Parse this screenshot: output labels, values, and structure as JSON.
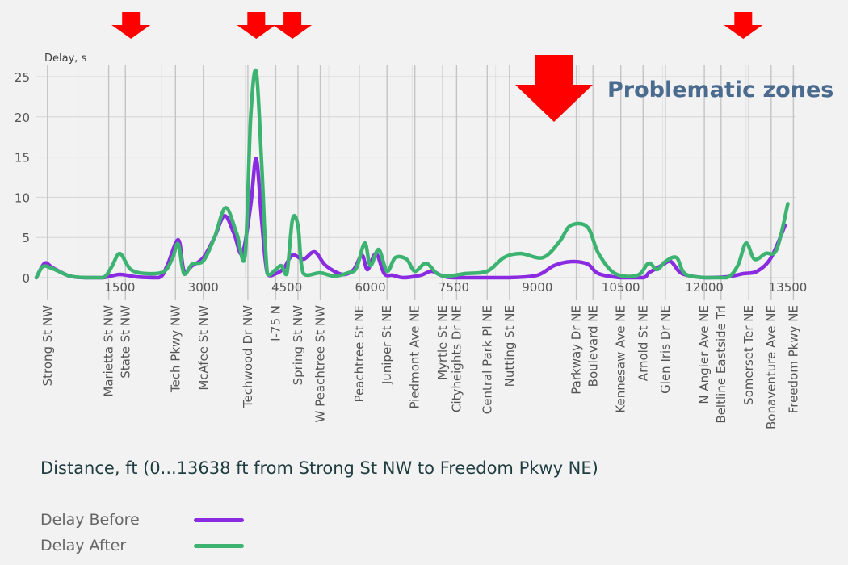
{
  "chart_data": {
    "type": "line",
    "ylabel": "Delay, s",
    "xlabel": "Distance, ft (0...13638 ft from Strong St NW to Freedom Pkwy NE)",
    "annotation": "Problematic zones",
    "xlim": [
      0,
      13638
    ],
    "ylim": [
      0,
      25
    ],
    "x_ticks": [
      1500,
      3000,
      4500,
      6000,
      7500,
      9000,
      10500,
      12000,
      13500
    ],
    "y_ticks": [
      0,
      5,
      10,
      15,
      20,
      25
    ],
    "grid": true,
    "streets": [
      {
        "name": "Strong St NW",
        "x": 200
      },
      {
        "name": "Marietta St NW",
        "x": 1300
      },
      {
        "name": "State St NW",
        "x": 1600
      },
      {
        "name": "Tech Pkwy NW",
        "x": 2500
      },
      {
        "name": "McAfee St NW",
        "x": 3000
      },
      {
        "name": "Techwood Dr NW",
        "x": 3800
      },
      {
        "name": "I-75 N",
        "x": 4300
      },
      {
        "name": "Spring St NW",
        "x": 4700
      },
      {
        "name": "W Peachtree St NW",
        "x": 5100
      },
      {
        "name": "Peachtree St NE",
        "x": 5800
      },
      {
        "name": "Juniper St NE",
        "x": 6300
      },
      {
        "name": "Piedmont Ave NE",
        "x": 6800
      },
      {
        "name": "Myrtle St NE",
        "x": 7300
      },
      {
        "name": "Cityheights Dr NE",
        "x": 7550
      },
      {
        "name": "Central Park Pl NE",
        "x": 8100
      },
      {
        "name": "Nutting St NE",
        "x": 8500
      },
      {
        "name": "Parkway Dr NE",
        "x": 9700
      },
      {
        "name": "Boulevard NE",
        "x": 10000
      },
      {
        "name": "Kennesaw Ave NE",
        "x": 10500
      },
      {
        "name": "Arnold St NE",
        "x": 10900
      },
      {
        "name": "Glen Iris Dr NE",
        "x": 11300
      },
      {
        "name": "N Angier Ave NE",
        "x": 12000
      },
      {
        "name": "Beltline Eastside Trl",
        "x": 12300
      },
      {
        "name": "Somerset Ter NE",
        "x": 12800
      },
      {
        "name": "Bonaventure Ave NE",
        "x": 13200
      },
      {
        "name": "Freedom Pkwy NE",
        "x": 13600
      }
    ],
    "problem_zones_x": [
      1700,
      3950,
      4600,
      12700,
      9300
    ],
    "series": [
      {
        "name": "Delay Before",
        "color": "#8a2be2",
        "points": [
          [
            0,
            0
          ],
          [
            150,
            1.8
          ],
          [
            300,
            1.2
          ],
          [
            600,
            0.2
          ],
          [
            900,
            0
          ],
          [
            1200,
            0
          ],
          [
            1500,
            0.4
          ],
          [
            1800,
            0.1
          ],
          [
            2200,
            0
          ],
          [
            2350,
            1.5
          ],
          [
            2550,
            4.7
          ],
          [
            2650,
            0.9
          ],
          [
            2800,
            1.5
          ],
          [
            3000,
            2.5
          ],
          [
            3200,
            5
          ],
          [
            3380,
            7.7
          ],
          [
            3550,
            5.5
          ],
          [
            3700,
            3
          ],
          [
            3850,
            9
          ],
          [
            3950,
            14.8
          ],
          [
            4050,
            7
          ],
          [
            4150,
            0.5
          ],
          [
            4300,
            0.5
          ],
          [
            4450,
            1.2
          ],
          [
            4600,
            2.8
          ],
          [
            4800,
            2.3
          ],
          [
            5000,
            3.2
          ],
          [
            5200,
            1.5
          ],
          [
            5500,
            0.4
          ],
          [
            5700,
            1
          ],
          [
            5850,
            2.8
          ],
          [
            5950,
            1
          ],
          [
            6100,
            3
          ],
          [
            6250,
            0.5
          ],
          [
            6400,
            0.3
          ],
          [
            6600,
            0
          ],
          [
            6900,
            0.3
          ],
          [
            7100,
            0.8
          ],
          [
            7300,
            0.2
          ],
          [
            7500,
            0
          ],
          [
            8000,
            0
          ],
          [
            8500,
            0
          ],
          [
            9000,
            0.3
          ],
          [
            9300,
            1.5
          ],
          [
            9600,
            2
          ],
          [
            9900,
            1.7
          ],
          [
            10100,
            0.5
          ],
          [
            10500,
            0
          ],
          [
            10900,
            0
          ],
          [
            11000,
            0.6
          ],
          [
            11100,
            1
          ],
          [
            11250,
            1.6
          ],
          [
            11400,
            2
          ],
          [
            11600,
            0.5
          ],
          [
            12000,
            0
          ],
          [
            12400,
            0.1
          ],
          [
            12700,
            0.5
          ],
          [
            12950,
            0.8
          ],
          [
            13200,
            2.5
          ],
          [
            13450,
            6.5
          ]
        ]
      },
      {
        "name": "Delay After",
        "color": "#3cb371",
        "points": [
          [
            0,
            0
          ],
          [
            120,
            1.4
          ],
          [
            300,
            1.1
          ],
          [
            600,
            0.2
          ],
          [
            900,
            0
          ],
          [
            1200,
            0
          ],
          [
            1350,
            1.3
          ],
          [
            1500,
            3
          ],
          [
            1700,
            1
          ],
          [
            2000,
            0.5
          ],
          [
            2300,
            0.8
          ],
          [
            2450,
            2.5
          ],
          [
            2550,
            4.2
          ],
          [
            2650,
            0.5
          ],
          [
            2800,
            1.7
          ],
          [
            3000,
            2.1
          ],
          [
            3200,
            5
          ],
          [
            3400,
            8.7
          ],
          [
            3600,
            5.5
          ],
          [
            3750,
            2.8
          ],
          [
            3850,
            20
          ],
          [
            3950,
            25.6
          ],
          [
            4050,
            14
          ],
          [
            4150,
            0.5
          ],
          [
            4300,
            1
          ],
          [
            4400,
            1.5
          ],
          [
            4500,
            0.5
          ],
          [
            4600,
            7.2
          ],
          [
            4700,
            6.5
          ],
          [
            4800,
            0.5
          ],
          [
            5100,
            0.6
          ],
          [
            5350,
            0.2
          ],
          [
            5600,
            0.6
          ],
          [
            5750,
            1.2
          ],
          [
            5900,
            4.3
          ],
          [
            6000,
            1.5
          ],
          [
            6150,
            3.5
          ],
          [
            6300,
            0.8
          ],
          [
            6450,
            2.5
          ],
          [
            6650,
            2.3
          ],
          [
            6800,
            0.8
          ],
          [
            7000,
            1.8
          ],
          [
            7200,
            0.5
          ],
          [
            7400,
            0.2
          ],
          [
            7700,
            0.5
          ],
          [
            8100,
            0.8
          ],
          [
            8400,
            2.5
          ],
          [
            8700,
            3
          ],
          [
            9100,
            2.5
          ],
          [
            9400,
            4.5
          ],
          [
            9600,
            6.5
          ],
          [
            9900,
            6.3
          ],
          [
            10100,
            3
          ],
          [
            10400,
            0.5
          ],
          [
            10800,
            0.3
          ],
          [
            11000,
            1.8
          ],
          [
            11150,
            1
          ],
          [
            11300,
            2
          ],
          [
            11500,
            2.5
          ],
          [
            11650,
            0.5
          ],
          [
            12000,
            0
          ],
          [
            12400,
            0
          ],
          [
            12600,
            1.5
          ],
          [
            12750,
            4.3
          ],
          [
            12900,
            2.3
          ],
          [
            13100,
            3
          ],
          [
            13300,
            3.5
          ],
          [
            13500,
            9.2
          ]
        ]
      }
    ]
  }
}
